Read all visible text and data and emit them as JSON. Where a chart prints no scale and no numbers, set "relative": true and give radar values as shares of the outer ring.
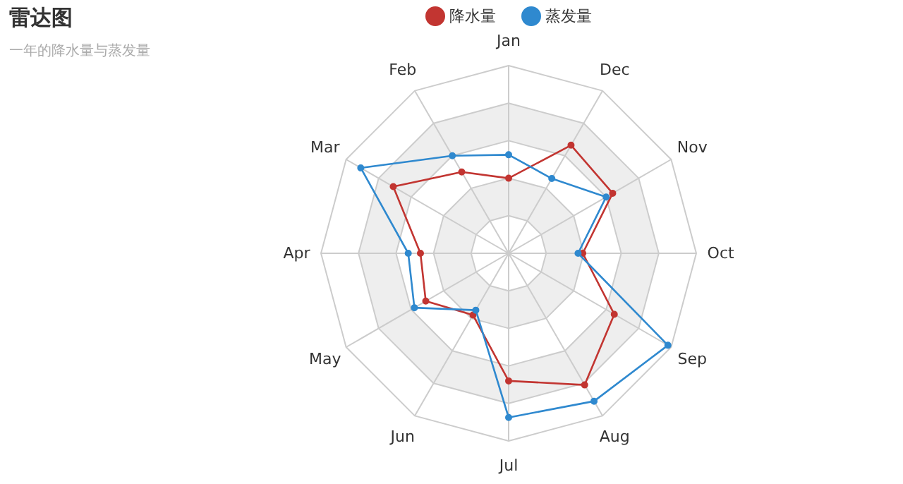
{
  "chart_data": {
    "type": "radar",
    "title": "雷达图",
    "subtitle": "一年的降水量与蒸发量",
    "relative": true,
    "grid": true,
    "legend": "top",
    "marker": "circle",
    "line_style": "solid",
    "categories": [
      "Jan",
      "Dec",
      "Nov",
      "Oct",
      "Sep",
      "Aug",
      "Jul",
      "Jun",
      "May",
      "Apr",
      "Mar",
      "Feb"
    ],
    "series": [
      {
        "name": "降水量",
        "color": "#c23531",
        "values": [
          0.4,
          0.665,
          0.64,
          0.395,
          0.65,
          0.81,
          0.68,
          0.38,
          0.51,
          0.47,
          0.71,
          0.5
        ]
      },
      {
        "name": "蒸发量",
        "color": "#2f89cf",
        "values": [
          0.525,
          0.46,
          0.6,
          0.37,
          0.98,
          0.91,
          0.875,
          0.35,
          0.58,
          0.535,
          0.91,
          0.6
        ]
      }
    ]
  }
}
